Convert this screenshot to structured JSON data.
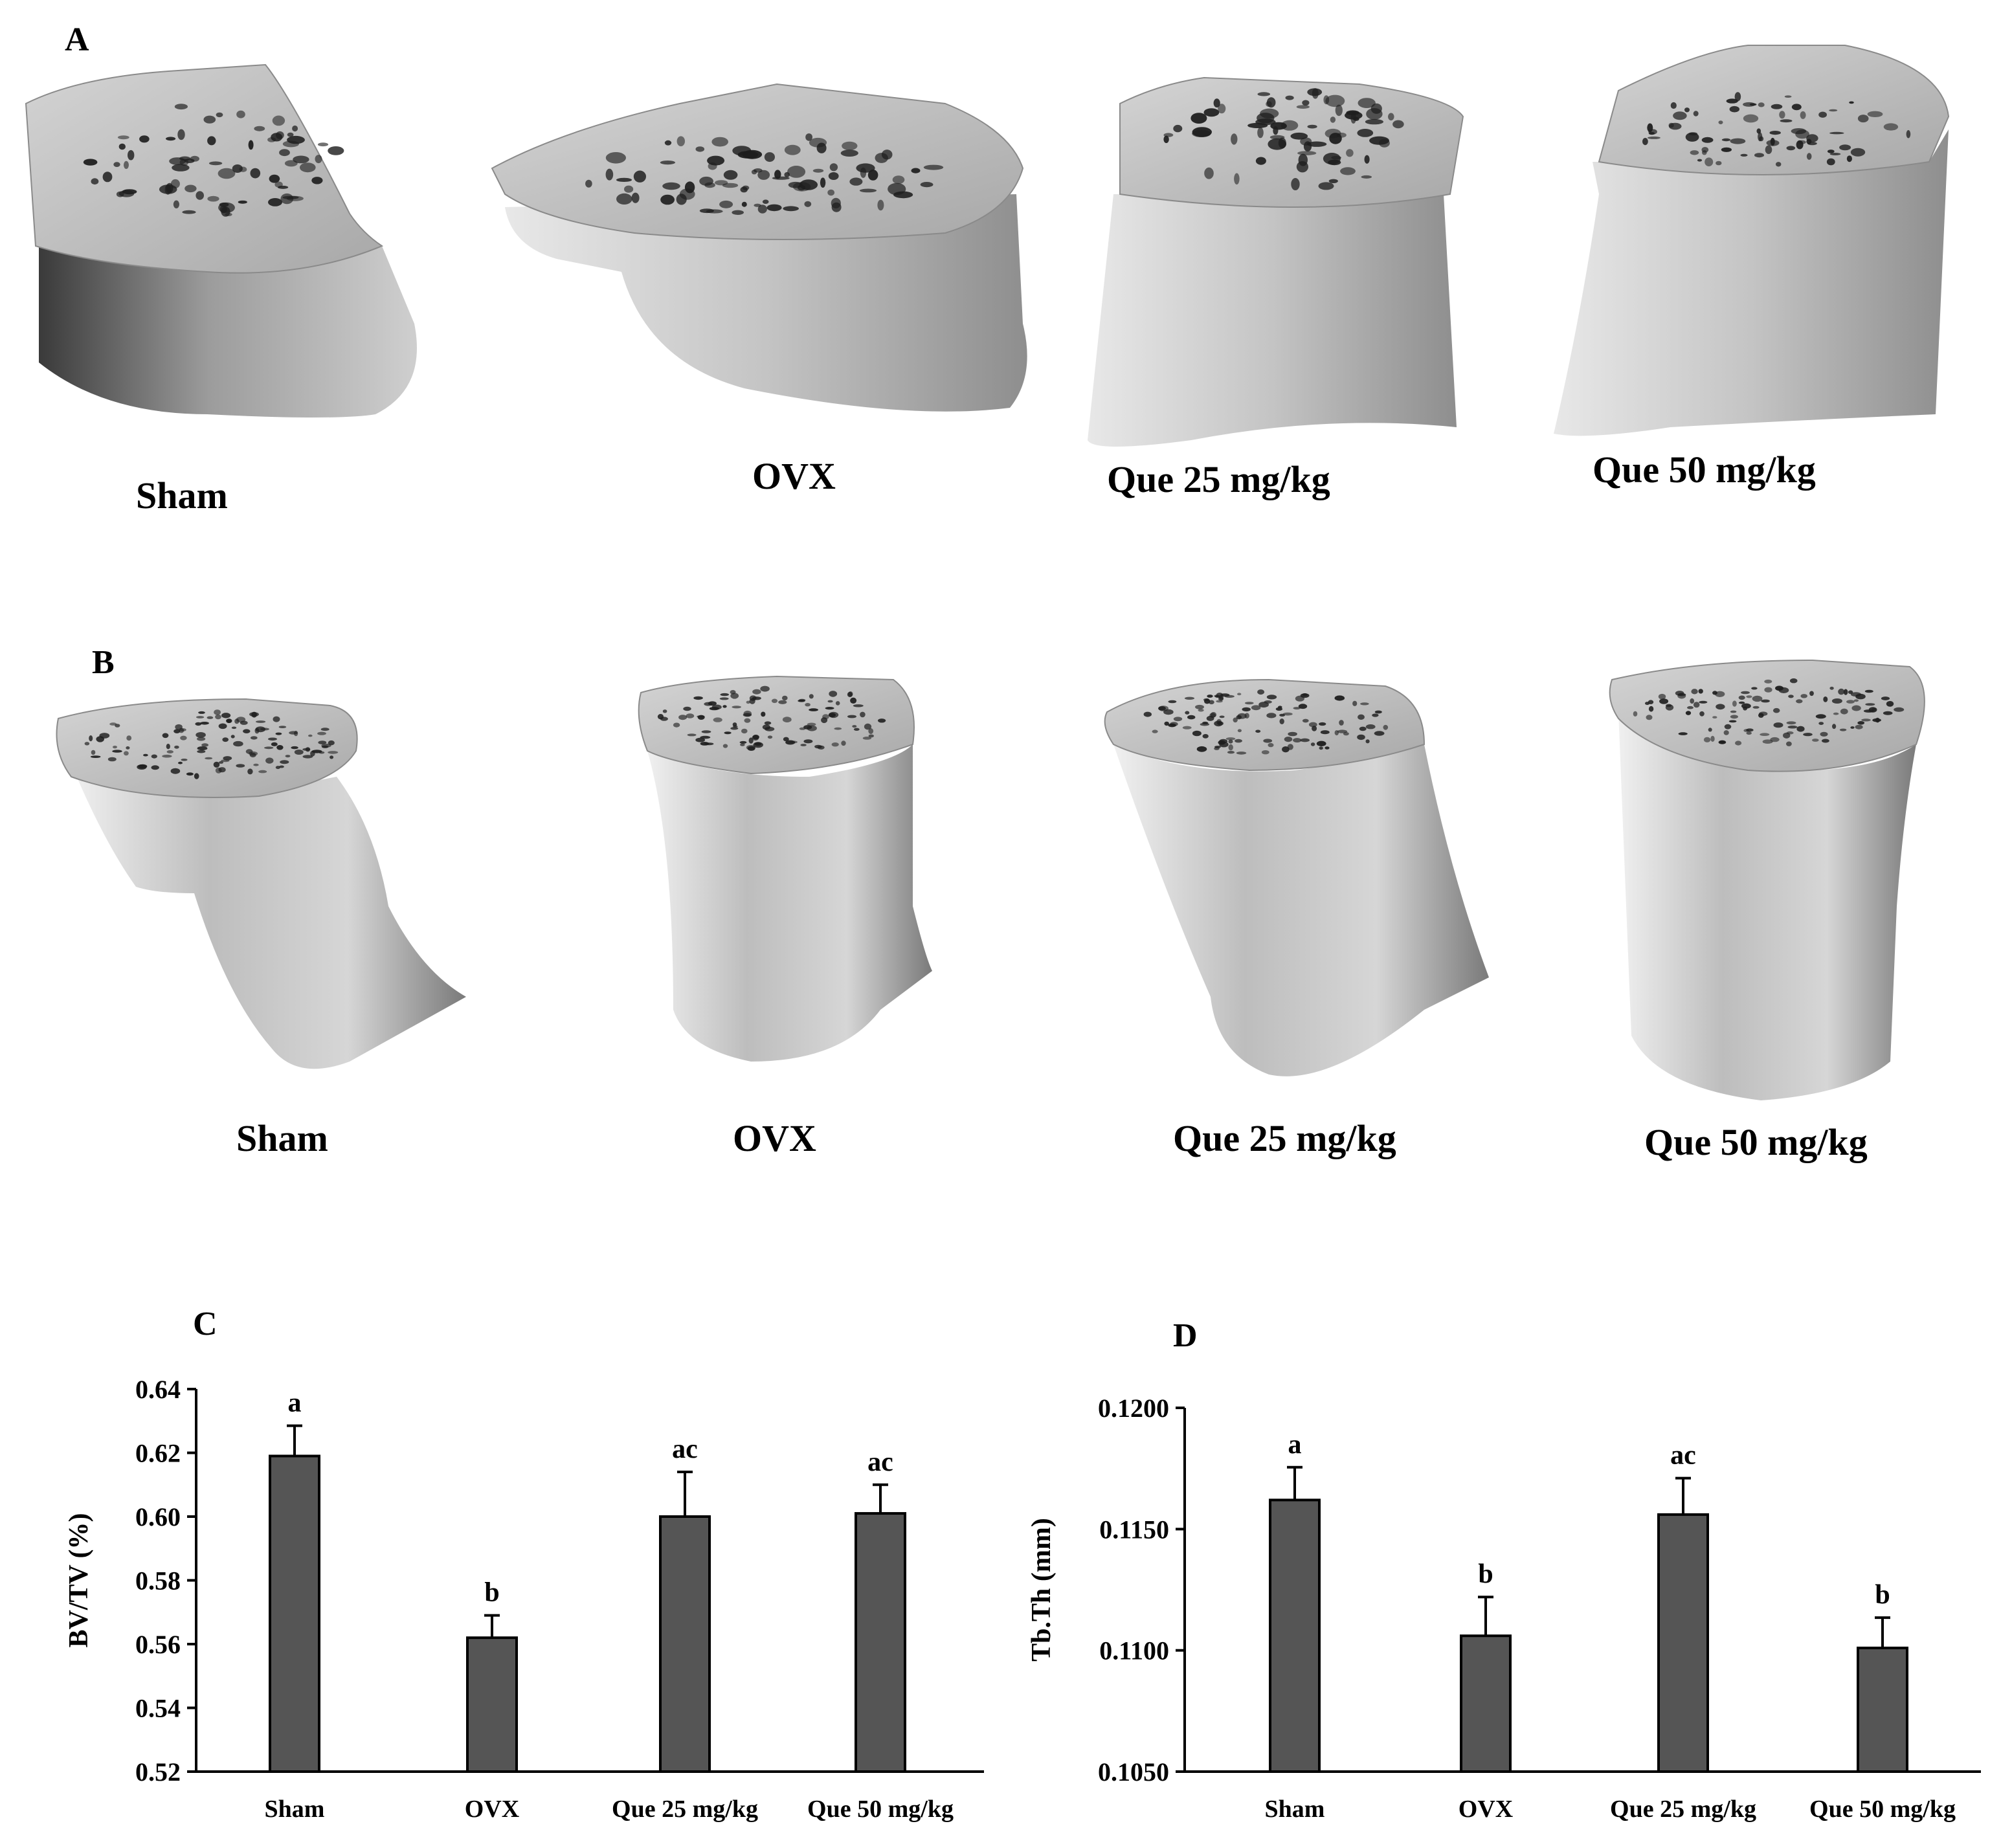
{
  "panels": {
    "A": {
      "letter": "A",
      "labels": [
        "Sham",
        "OVX",
        "Que 25 mg/kg",
        "Que 50 mg/kg"
      ],
      "view": "top-oblique"
    },
    "B": {
      "letter": "B",
      "labels": [
        "Sham",
        "OVX",
        "Que 25 mg/kg",
        "Que 50 mg/kg"
      ],
      "view": "tall-oblique"
    },
    "C": {
      "letter": "C"
    },
    "D": {
      "letter": "D"
    }
  },
  "colors": {
    "bar_fill": "#555555",
    "bar_stroke": "#000000",
    "bone_light": "#e2e2e2",
    "bone_mid": "#b4b4b4",
    "bone_dark": "#3c3c3c",
    "pore": "#1e1e1e"
  },
  "chart_data": [
    {
      "type": "bar",
      "panel": "C",
      "categories": [
        "Sham",
        "OVX",
        "Que 25 mg/kg",
        "Que 50 mg/kg"
      ],
      "values": [
        0.619,
        0.562,
        0.6,
        0.601
      ],
      "errors": [
        0.0095,
        0.007,
        0.014,
        0.009
      ],
      "significance": [
        "a",
        "b",
        "ac",
        "ac"
      ],
      "ylabel": "BV/TV (%)",
      "ylim": [
        0.52,
        0.64
      ],
      "yticks": [
        0.52,
        0.54,
        0.56,
        0.58,
        0.6,
        0.62,
        0.64
      ],
      "ytick_labels": [
        "0.52",
        "0.54",
        "0.56",
        "0.58",
        "0.60",
        "0.62",
        "0.64"
      ],
      "grid": false
    },
    {
      "type": "bar",
      "panel": "D",
      "categories": [
        "Sham",
        "OVX",
        "Que 25 mg/kg",
        "Que 50 mg/kg"
      ],
      "values": [
        0.1162,
        0.1106,
        0.1156,
        0.1101
      ],
      "errors": [
        0.00135,
        0.0016,
        0.0015,
        0.00125
      ],
      "significance": [
        "a",
        "b",
        "ac",
        "b"
      ],
      "ylabel": "Tb.Th (mm)",
      "ylim": [
        0.105,
        0.12
      ],
      "yticks": [
        0.105,
        0.11,
        0.115,
        0.12
      ],
      "ytick_labels": [
        "0.1050",
        "0.1100",
        "0.1150",
        "0.1200"
      ],
      "grid": false
    }
  ]
}
